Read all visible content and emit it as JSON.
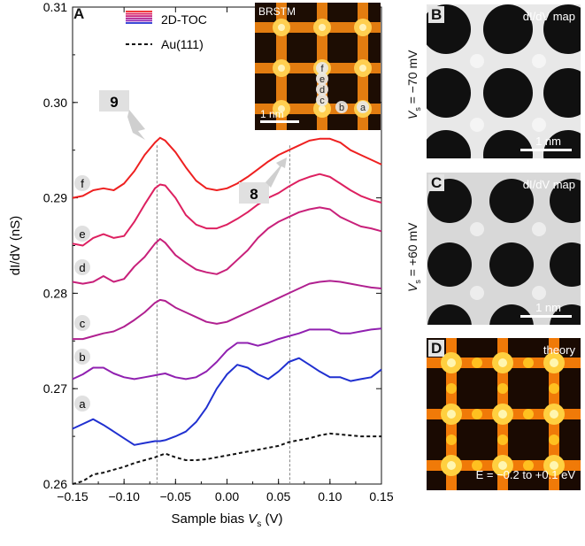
{
  "chart_data": {
    "type": "line",
    "panel_label": "A",
    "xlabel_prefix": "Sample bias ",
    "xlabel_var": "V",
    "xlabel_sub": "s",
    "xlabel_unit": " (V)",
    "ylabel": "dI/dV (nS)",
    "xlim": [
      -0.15,
      0.15
    ],
    "ylim": [
      0.26,
      0.31
    ],
    "xticks": [
      "-0.15",
      "-0.10",
      "-0.05",
      "0.00",
      "0.05",
      "0.10",
      "0.15"
    ],
    "xtick_values": [
      -0.15,
      -0.1,
      -0.05,
      0.0,
      0.05,
      0.1,
      0.15
    ],
    "yticks": [
      "0.26",
      "0.27",
      "0.28",
      "0.29",
      "0.30",
      "0.31"
    ],
    "ytick_values": [
      0.26,
      0.27,
      0.28,
      0.29,
      0.3,
      0.31
    ],
    "vlines": [
      -0.068,
      0.061
    ],
    "legend": [
      {
        "label": "2D-TOC",
        "colors": [
          "#ee2020",
          "#dd2060",
          "#c8207a",
          "#b02090",
          "#9020b0",
          "#2030d0"
        ],
        "style": "solid"
      },
      {
        "label": "Au(111)",
        "color": "#111111",
        "style": "dashed"
      }
    ],
    "annotations": [
      {
        "text": "9",
        "x": -0.068,
        "y": 0.2962
      },
      {
        "text": "8",
        "x": 0.061,
        "y": 0.2948
      }
    ],
    "series": [
      {
        "name": "f",
        "color": "#ee2020",
        "x": [
          -0.15,
          -0.14,
          -0.13,
          -0.12,
          -0.11,
          -0.1,
          -0.09,
          -0.08,
          -0.07,
          -0.065,
          -0.06,
          -0.05,
          -0.04,
          -0.03,
          -0.02,
          -0.01,
          0.0,
          0.01,
          0.02,
          0.03,
          0.04,
          0.05,
          0.06,
          0.07,
          0.08,
          0.09,
          0.1,
          0.11,
          0.12,
          0.13,
          0.14,
          0.15
        ],
        "y": [
          0.29,
          0.2902,
          0.2908,
          0.291,
          0.2908,
          0.2915,
          0.2928,
          0.2945,
          0.2958,
          0.2963,
          0.296,
          0.2948,
          0.2932,
          0.2918,
          0.291,
          0.2908,
          0.291,
          0.2915,
          0.2922,
          0.293,
          0.2938,
          0.2945,
          0.295,
          0.2955,
          0.296,
          0.2962,
          0.2962,
          0.2958,
          0.295,
          0.2945,
          0.294,
          0.2935
        ]
      },
      {
        "name": "e",
        "color": "#dd2060",
        "x": [
          -0.15,
          -0.14,
          -0.13,
          -0.12,
          -0.11,
          -0.1,
          -0.09,
          -0.08,
          -0.07,
          -0.065,
          -0.06,
          -0.05,
          -0.04,
          -0.03,
          -0.02,
          -0.01,
          0.0,
          0.01,
          0.02,
          0.03,
          0.04,
          0.05,
          0.06,
          0.07,
          0.08,
          0.09,
          0.1,
          0.11,
          0.12,
          0.13,
          0.14,
          0.15
        ],
        "y": [
          0.2852,
          0.285,
          0.2858,
          0.2862,
          0.2858,
          0.286,
          0.2875,
          0.2893,
          0.291,
          0.2914,
          0.2913,
          0.29,
          0.2882,
          0.2872,
          0.2868,
          0.2868,
          0.2872,
          0.2878,
          0.2885,
          0.2893,
          0.29,
          0.2905,
          0.2912,
          0.2918,
          0.2922,
          0.2925,
          0.2922,
          0.2915,
          0.2908,
          0.2902,
          0.2898,
          0.2895
        ]
      },
      {
        "name": "d",
        "color": "#c8207a",
        "x": [
          -0.15,
          -0.14,
          -0.13,
          -0.12,
          -0.11,
          -0.1,
          -0.09,
          -0.08,
          -0.07,
          -0.065,
          -0.06,
          -0.05,
          -0.04,
          -0.03,
          -0.02,
          -0.01,
          0.0,
          0.01,
          0.02,
          0.03,
          0.04,
          0.05,
          0.06,
          0.07,
          0.08,
          0.09,
          0.1,
          0.11,
          0.12,
          0.13,
          0.14,
          0.15
        ],
        "y": [
          0.2812,
          0.281,
          0.2812,
          0.2818,
          0.2812,
          0.2815,
          0.2828,
          0.2838,
          0.2852,
          0.2857,
          0.2853,
          0.284,
          0.2832,
          0.2825,
          0.2822,
          0.282,
          0.2825,
          0.2835,
          0.2845,
          0.2858,
          0.2868,
          0.2875,
          0.288,
          0.2885,
          0.2888,
          0.289,
          0.2888,
          0.288,
          0.2875,
          0.287,
          0.2868,
          0.2865
        ]
      },
      {
        "name": "c",
        "color": "#b02090",
        "x": [
          -0.15,
          -0.14,
          -0.13,
          -0.12,
          -0.11,
          -0.1,
          -0.09,
          -0.08,
          -0.07,
          -0.065,
          -0.06,
          -0.05,
          -0.04,
          -0.03,
          -0.02,
          -0.01,
          0.0,
          0.01,
          0.02,
          0.03,
          0.04,
          0.05,
          0.06,
          0.07,
          0.08,
          0.09,
          0.1,
          0.11,
          0.12,
          0.13,
          0.14,
          0.15
        ],
        "y": [
          0.2752,
          0.2752,
          0.2755,
          0.2758,
          0.276,
          0.2765,
          0.2772,
          0.278,
          0.279,
          0.2793,
          0.2792,
          0.2785,
          0.278,
          0.2775,
          0.277,
          0.2768,
          0.277,
          0.2775,
          0.278,
          0.2785,
          0.279,
          0.2795,
          0.28,
          0.2805,
          0.281,
          0.2812,
          0.2813,
          0.2812,
          0.281,
          0.2808,
          0.2806,
          0.2805
        ]
      },
      {
        "name": "b",
        "color": "#9020b0",
        "x": [
          -0.15,
          -0.14,
          -0.13,
          -0.12,
          -0.11,
          -0.1,
          -0.09,
          -0.08,
          -0.07,
          -0.065,
          -0.06,
          -0.05,
          -0.04,
          -0.03,
          -0.02,
          -0.01,
          0.0,
          0.01,
          0.02,
          0.03,
          0.04,
          0.05,
          0.06,
          0.07,
          0.08,
          0.09,
          0.1,
          0.11,
          0.12,
          0.13,
          0.14,
          0.15
        ],
        "y": [
          0.271,
          0.2715,
          0.2722,
          0.2722,
          0.2716,
          0.2712,
          0.271,
          0.2712,
          0.2714,
          0.2715,
          0.2716,
          0.2712,
          0.271,
          0.2712,
          0.2718,
          0.2728,
          0.274,
          0.2748,
          0.2748,
          0.2745,
          0.2748,
          0.2752,
          0.2755,
          0.2758,
          0.2762,
          0.2762,
          0.2762,
          0.2758,
          0.2758,
          0.276,
          0.2762,
          0.2763
        ]
      },
      {
        "name": "a",
        "color": "#2030d0",
        "x": [
          -0.15,
          -0.14,
          -0.13,
          -0.12,
          -0.11,
          -0.1,
          -0.09,
          -0.08,
          -0.07,
          -0.065,
          -0.06,
          -0.05,
          -0.04,
          -0.03,
          -0.02,
          -0.01,
          0.0,
          0.01,
          0.02,
          0.03,
          0.04,
          0.05,
          0.06,
          0.07,
          0.08,
          0.09,
          0.1,
          0.11,
          0.12,
          0.13,
          0.14,
          0.15
        ],
        "y": [
          0.2658,
          0.2663,
          0.2668,
          0.2662,
          0.2655,
          0.2648,
          0.2641,
          0.2643,
          0.2645,
          0.2645,
          0.2646,
          0.265,
          0.2655,
          0.2665,
          0.268,
          0.27,
          0.2715,
          0.2725,
          0.2722,
          0.2715,
          0.271,
          0.2718,
          0.2728,
          0.2732,
          0.2725,
          0.2718,
          0.2712,
          0.2712,
          0.2708,
          0.271,
          0.2712,
          0.272
        ]
      },
      {
        "name": "Au(111)",
        "color": "#111111",
        "dashed": true,
        "x": [
          -0.15,
          -0.14,
          -0.13,
          -0.12,
          -0.11,
          -0.1,
          -0.09,
          -0.08,
          -0.07,
          -0.06,
          -0.05,
          -0.04,
          -0.03,
          -0.02,
          -0.01,
          0.0,
          0.01,
          0.02,
          0.03,
          0.04,
          0.05,
          0.06,
          0.07,
          0.08,
          0.09,
          0.1,
          0.11,
          0.12,
          0.13,
          0.14,
          0.15
        ],
        "y": [
          0.26,
          0.2603,
          0.261,
          0.2612,
          0.2615,
          0.2618,
          0.2622,
          0.2625,
          0.2628,
          0.2632,
          0.2628,
          0.2625,
          0.2625,
          0.2626,
          0.2628,
          0.263,
          0.2632,
          0.2634,
          0.2636,
          0.2638,
          0.264,
          0.2644,
          0.2646,
          0.2648,
          0.2651,
          0.2653,
          0.2652,
          0.2651,
          0.265,
          0.265,
          0.265
        ]
      }
    ]
  },
  "inset": {
    "title": "BRSTM",
    "site_labels": [
      "f",
      "e",
      "d",
      "c",
      "b",
      "a"
    ],
    "scale": "1 nm"
  },
  "panels": [
    {
      "label": "B",
      "title_prefix": "dI/dV map",
      "vs_label": "−70 mV",
      "scale": "1 nm",
      "bg": "#101010",
      "fg": "#e8e8e8"
    },
    {
      "label": "C",
      "title_prefix": "dI/dV map",
      "vs_label": "+60 mV",
      "scale": "1 nm",
      "bg": "#111111",
      "fg": "#d8d8d8"
    },
    {
      "label": "D",
      "title_prefix": "theory",
      "energy": "E = −0.2 to +0.1 eV",
      "bg": "#1a0c04",
      "fg": "#ff9a10"
    }
  ]
}
